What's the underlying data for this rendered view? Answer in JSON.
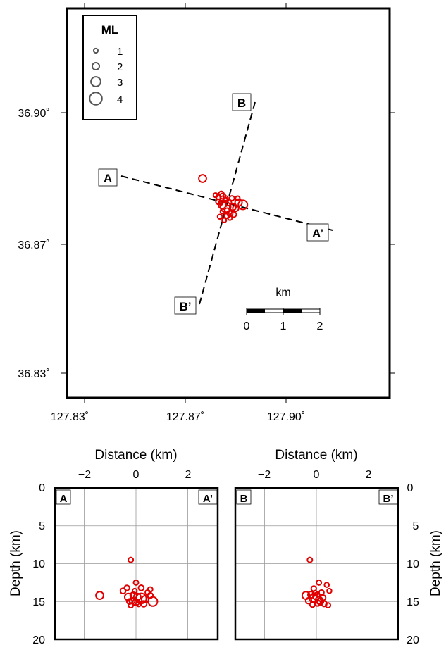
{
  "colors": {
    "event": "#e00000",
    "frame": "#000000",
    "grid": "#9a9a9a",
    "legend_symbol": "#555555"
  },
  "map": {
    "lon_ticks": [
      "127.83˚",
      "127.87˚",
      "127.90˚"
    ],
    "lat_ticks": [
      "36.90˚",
      "36.87˚",
      "36.83˚"
    ],
    "legend": {
      "title": "ML",
      "items": [
        {
          "label": "1",
          "magnitude": 1
        },
        {
          "label": "2",
          "magnitude": 2
        },
        {
          "label": "3",
          "magnitude": 3
        },
        {
          "label": "4",
          "magnitude": 4
        }
      ]
    },
    "profiles": [
      {
        "start_label": "A",
        "end_label": "A’"
      },
      {
        "start_label": "B",
        "end_label": "B’"
      }
    ],
    "scale_bar": {
      "title": "km",
      "tick_labels": [
        "0",
        "1",
        "2"
      ]
    },
    "events": [
      {
        "lon": 127.871,
        "lat": 36.885,
        "ml": 2.2
      },
      {
        "lon": 127.878,
        "lat": 36.881,
        "ml": 1.5
      },
      {
        "lon": 127.8775,
        "lat": 36.8815,
        "ml": 1.3
      },
      {
        "lon": 127.879,
        "lat": 36.8805,
        "ml": 1.2
      },
      {
        "lon": 127.8765,
        "lat": 36.8808,
        "ml": 1.2
      },
      {
        "lon": 127.8755,
        "lat": 36.8812,
        "ml": 1.0
      },
      {
        "lon": 127.88,
        "lat": 36.8795,
        "ml": 1.6
      },
      {
        "lon": 127.879,
        "lat": 36.8785,
        "ml": 3.2
      },
      {
        "lon": 127.8815,
        "lat": 36.8785,
        "ml": 1.8
      },
      {
        "lon": 127.8835,
        "lat": 36.8795,
        "ml": 2.0
      },
      {
        "lon": 127.885,
        "lat": 36.879,
        "ml": 2.8
      },
      {
        "lon": 127.8825,
        "lat": 36.8782,
        "ml": 1.6
      },
      {
        "lon": 127.8778,
        "lat": 36.879,
        "ml": 2.2
      },
      {
        "lon": 127.8765,
        "lat": 36.8797,
        "ml": 1.3
      },
      {
        "lon": 127.879,
        "lat": 36.88,
        "ml": 1.4
      },
      {
        "lon": 127.8812,
        "lat": 36.8805,
        "ml": 1.2
      },
      {
        "lon": 127.8832,
        "lat": 36.8805,
        "ml": 1.0
      },
      {
        "lon": 127.8805,
        "lat": 36.877,
        "ml": 1.5
      },
      {
        "lon": 127.8795,
        "lat": 36.8765,
        "ml": 1.3
      },
      {
        "lon": 127.8818,
        "lat": 36.8768,
        "ml": 1.4
      },
      {
        "lon": 127.877,
        "lat": 36.8763,
        "ml": 1.1
      },
      {
        "lon": 127.878,
        "lat": 36.8775,
        "ml": 1.2
      },
      {
        "lon": 127.8785,
        "lat": 36.8755,
        "ml": 1.0
      },
      {
        "lon": 127.8805,
        "lat": 36.876,
        "ml": 1.0
      },
      {
        "lon": 127.8795,
        "lat": 36.8777,
        "ml": 1.2
      },
      {
        "lon": 127.8773,
        "lat": 36.8795,
        "ml": 1.1
      }
    ]
  },
  "section_A": {
    "corner_left": "A",
    "corner_right": "A’",
    "xlabel": "Distance (km)",
    "ylabel": "Depth (km)",
    "x_ticks": [
      "−2",
      "0",
      "2"
    ],
    "y_ticks": [
      "0",
      "5",
      "10",
      "15",
      "20"
    ],
    "events": [
      {
        "dist": -1.4,
        "depth": 14.2,
        "ml": 2.2
      },
      {
        "dist": -0.2,
        "depth": 9.5,
        "ml": 1.2
      },
      {
        "dist": -0.5,
        "depth": 13.6,
        "ml": 1.4
      },
      {
        "dist": -0.35,
        "depth": 13.2,
        "ml": 1.3
      },
      {
        "dist": 0.0,
        "depth": 12.5,
        "ml": 1.2
      },
      {
        "dist": 0.2,
        "depth": 13.2,
        "ml": 1.4
      },
      {
        "dist": 0.55,
        "depth": 13.4,
        "ml": 1.2
      },
      {
        "dist": -0.3,
        "depth": 14.4,
        "ml": 2.0
      },
      {
        "dist": -0.1,
        "depth": 14.2,
        "ml": 1.8
      },
      {
        "dist": 0.05,
        "depth": 14.4,
        "ml": 2.0
      },
      {
        "dist": 0.2,
        "depth": 14.6,
        "ml": 3.2
      },
      {
        "dist": 0.35,
        "depth": 14.7,
        "ml": 2.0
      },
      {
        "dist": -0.15,
        "depth": 14.9,
        "ml": 1.6
      },
      {
        "dist": 0.0,
        "depth": 15.1,
        "ml": 1.8
      },
      {
        "dist": -0.25,
        "depth": 15.0,
        "ml": 1.4
      },
      {
        "dist": 0.3,
        "depth": 15.3,
        "ml": 1.6
      },
      {
        "dist": -0.2,
        "depth": 15.5,
        "ml": 1.2
      },
      {
        "dist": 0.1,
        "depth": 15.3,
        "ml": 1.4
      },
      {
        "dist": 0.65,
        "depth": 15.0,
        "ml": 2.8
      },
      {
        "dist": 0.55,
        "depth": 14.2,
        "ml": 1.4
      },
      {
        "dist": 0.45,
        "depth": 13.8,
        "ml": 1.2
      },
      {
        "dist": -0.05,
        "depth": 13.6,
        "ml": 1.1
      }
    ]
  },
  "section_B": {
    "corner_left": "B",
    "corner_right": "B’",
    "xlabel": "Distance (km)",
    "ylabel": "Depth (km)",
    "x_ticks": [
      "−2",
      "0",
      "2"
    ],
    "y_ticks": [
      "0",
      "5",
      "10",
      "15",
      "20"
    ],
    "events": [
      {
        "dist": -0.25,
        "depth": 9.5,
        "ml": 1.2
      },
      {
        "dist": 0.1,
        "depth": 12.5,
        "ml": 1.2
      },
      {
        "dist": 0.4,
        "depth": 12.8,
        "ml": 1.1
      },
      {
        "dist": -0.1,
        "depth": 13.3,
        "ml": 1.3
      },
      {
        "dist": 0.2,
        "depth": 13.8,
        "ml": 1.2
      },
      {
        "dist": 0.5,
        "depth": 13.6,
        "ml": 1.1
      },
      {
        "dist": -0.4,
        "depth": 14.2,
        "ml": 2.2
      },
      {
        "dist": -0.2,
        "depth": 14.1,
        "ml": 1.8
      },
      {
        "dist": 0.0,
        "depth": 14.3,
        "ml": 2.0
      },
      {
        "dist": -0.1,
        "depth": 14.6,
        "ml": 2.6
      },
      {
        "dist": 0.1,
        "depth": 14.8,
        "ml": 2.0
      },
      {
        "dist": 0.25,
        "depth": 14.5,
        "ml": 1.5
      },
      {
        "dist": -0.3,
        "depth": 14.9,
        "ml": 1.6
      },
      {
        "dist": 0.05,
        "depth": 15.2,
        "ml": 1.6
      },
      {
        "dist": -0.15,
        "depth": 15.4,
        "ml": 1.3
      },
      {
        "dist": 0.3,
        "depth": 15.3,
        "ml": 1.4
      },
      {
        "dist": 0.45,
        "depth": 15.5,
        "ml": 1.2
      },
      {
        "dist": -0.05,
        "depth": 13.9,
        "ml": 1.3
      },
      {
        "dist": 0.15,
        "depth": 15.0,
        "ml": 1.8
      }
    ]
  }
}
